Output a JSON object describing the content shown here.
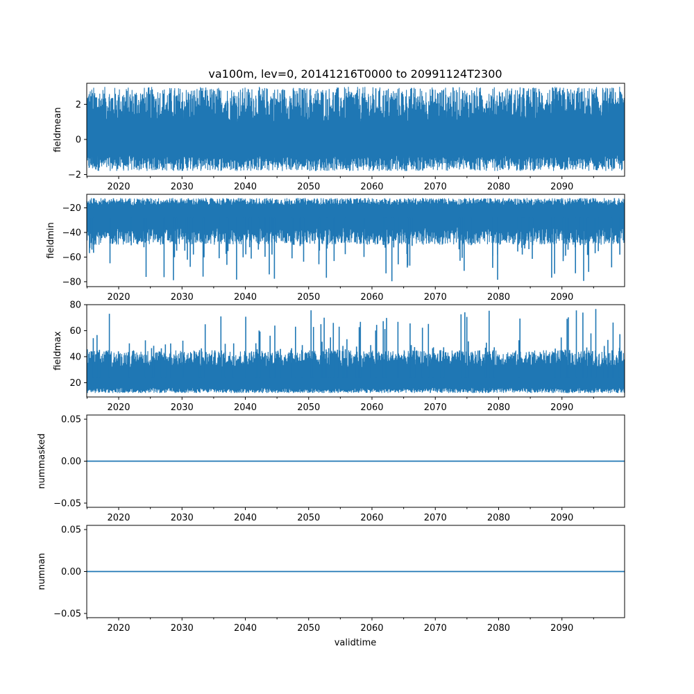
{
  "chart_data": {
    "type": "line",
    "title": "va100m, lev=0, 20141216T0000 to 20991124T2300",
    "xlabel": "validtime",
    "x_range": [
      "2014-12-16",
      "2099-11-24"
    ],
    "x_ticks": [
      "2020",
      "2030",
      "2040",
      "2050",
      "2060",
      "2070",
      "2080",
      "2090"
    ],
    "series_color": "#1f77b4",
    "subplots": [
      {
        "ylabel": "fieldmean",
        "ylim": [
          -2.1,
          3.2
        ],
        "y_ticks": [
          -2,
          0,
          2
        ],
        "y_tick_labels": [
          "−2",
          "0",
          "2"
        ],
        "signal": {
          "kind": "noise",
          "low_band": [
            -1.8,
            -0.9
          ],
          "high_band": [
            1.0,
            3.0
          ],
          "median": 0.2
        }
      },
      {
        "ylabel": "fieldmin",
        "ylim": [
          -84,
          -9
        ],
        "y_ticks": [
          -80,
          -60,
          -40,
          -20
        ],
        "y_tick_labels": [
          "−80",
          "−60",
          "−40",
          "−20"
        ],
        "signal": {
          "kind": "noise",
          "low_band": [
            -50,
            -36
          ],
          "high_band": [
            -18,
            -12
          ],
          "median": -28,
          "spike_direction": "down",
          "spike_extreme": -80
        }
      },
      {
        "ylabel": "fieldmax",
        "ylim": [
          9,
          80
        ],
        "y_ticks": [
          20,
          40,
          60,
          80
        ],
        "y_tick_labels": [
          "20",
          "40",
          "60",
          "80"
        ],
        "signal": {
          "kind": "noise",
          "low_band": [
            12,
            16
          ],
          "high_band": [
            32,
            45
          ],
          "median": 24,
          "spike_direction": "up",
          "spike_extreme": 77
        }
      },
      {
        "ylabel": "nummasked",
        "ylim": [
          -0.055,
          0.055
        ],
        "y_ticks": [
          -0.05,
          0,
          0.05
        ],
        "y_tick_labels": [
          "−0.05",
          "0.00",
          "0.05"
        ],
        "signal": {
          "kind": "constant",
          "value": 0.0
        }
      },
      {
        "ylabel": "numnan",
        "ylim": [
          -0.055,
          0.055
        ],
        "y_ticks": [
          -0.05,
          0,
          0.05
        ],
        "y_tick_labels": [
          "−0.05",
          "0.00",
          "0.05"
        ],
        "signal": {
          "kind": "constant",
          "value": 0.0
        }
      }
    ]
  }
}
